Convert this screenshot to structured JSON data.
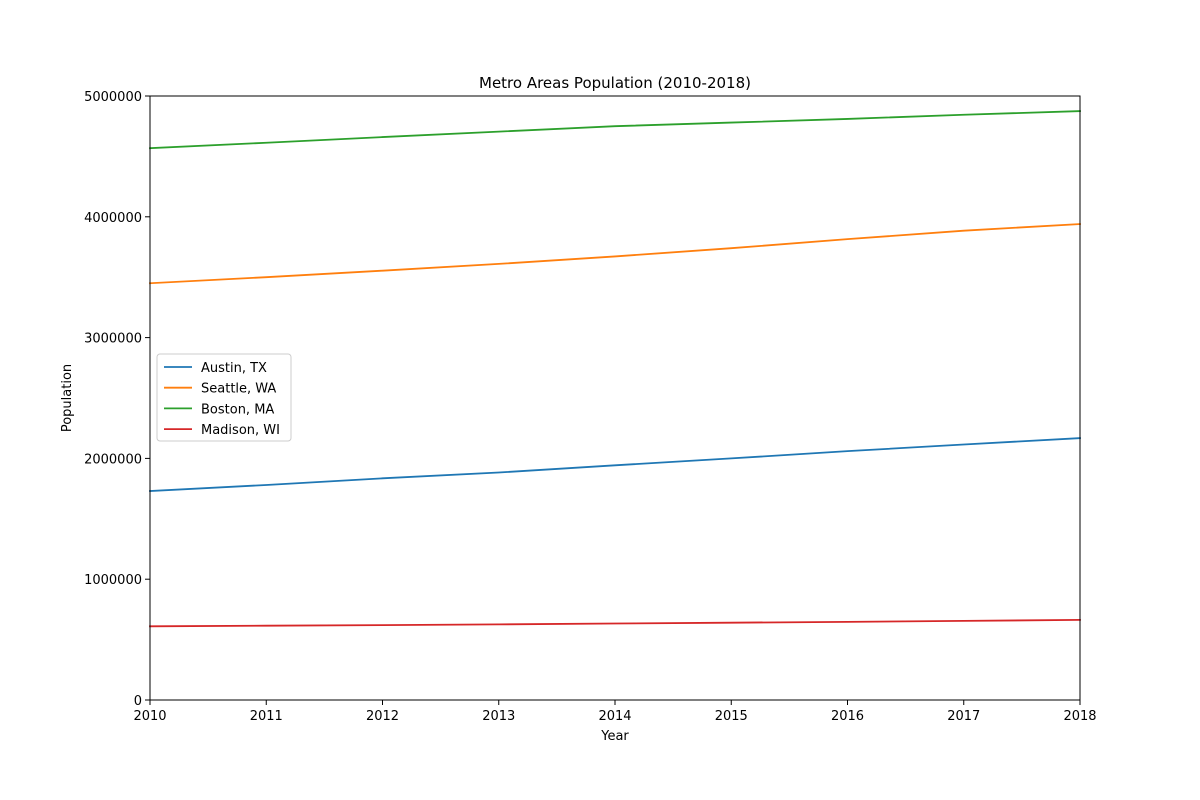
{
  "chart_data": {
    "type": "line",
    "title": "Metro Areas Population (2010-2018)",
    "xlabel": "Year",
    "ylabel": "Population",
    "x": [
      2010,
      2011,
      2012,
      2013,
      2014,
      2015,
      2016,
      2017,
      2018
    ],
    "xlim": [
      2010,
      2018
    ],
    "ylim": [
      0,
      5000000
    ],
    "xticks": [
      "2010",
      "2011",
      "2012",
      "2013",
      "2014",
      "2015",
      "2016",
      "2017",
      "2018"
    ],
    "yticks": [
      "0",
      "1000000",
      "2000000",
      "3000000",
      "4000000",
      "5000000"
    ],
    "ytick_values": [
      0,
      1000000,
      2000000,
      3000000,
      4000000,
      5000000
    ],
    "grid": false,
    "legend_position": "center-left",
    "series": [
      {
        "name": "Austin, TX",
        "color": "#1f77b4",
        "values": [
          1730000,
          1780000,
          1835000,
          1883000,
          1943000,
          2000000,
          2060000,
          2115000,
          2168000
        ]
      },
      {
        "name": "Seattle, WA",
        "color": "#ff7f0e",
        "values": [
          3450000,
          3500000,
          3554000,
          3610000,
          3672000,
          3740000,
          3815000,
          3885000,
          3940000
        ]
      },
      {
        "name": "Boston, MA",
        "color": "#2ca02c",
        "values": [
          4568000,
          4613000,
          4660000,
          4705000,
          4750000,
          4780000,
          4810000,
          4845000,
          4875000
        ]
      },
      {
        "name": "Madison, WI",
        "color": "#d62728",
        "values": [
          610000,
          615000,
          620000,
          626000,
          633000,
          640000,
          647000,
          655000,
          663000
        ]
      }
    ]
  }
}
